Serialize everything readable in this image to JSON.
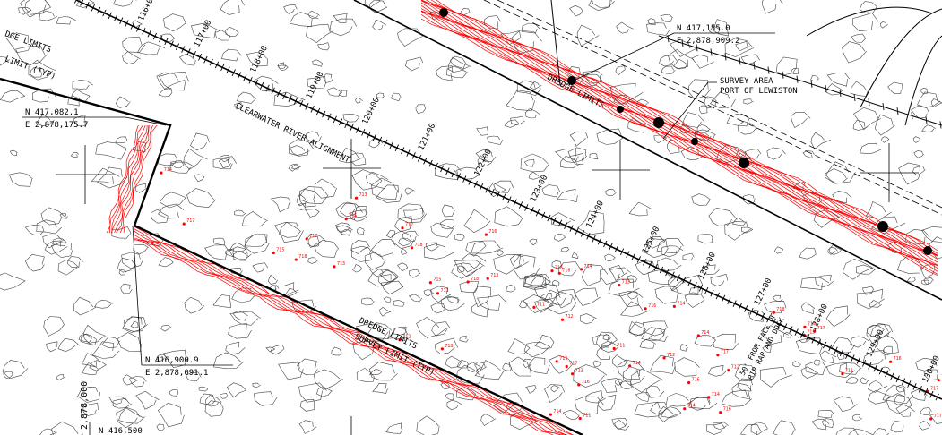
{
  "colors": {
    "background": "#ffffff",
    "linework": "#000000",
    "contours": "#444444",
    "survey": "#ff0000"
  },
  "labels": {
    "dredge_limits_ul": "DGE LIMITS",
    "limit_typ": "LIMIT (TYP)",
    "dredge_limits_top": "DREDGE LIMITS",
    "dredge_limits_bottom": "DREDGE LIMITS",
    "survey_limit_typ": "SURVEY LIMIT (TYP)",
    "survey_area_line1": "SURVEY AREA",
    "survey_area_line2": "PORT OF LEWISTON",
    "alignment": "CLEARWATER RIVER ALIGNMENT",
    "offset_note": "50' FROM FACE OF",
    "offset_note2": "RIP RAP AND DOCK",
    "grid_easting": "2,878,000",
    "grid_northing_partial": "N 416,500"
  },
  "coords": [
    {
      "n": "N 417,082.1",
      "e": "E 2,878,175.7"
    },
    {
      "n": "N 417,155.0",
      "e": "E 2,878,909.2"
    },
    {
      "n": "N 416,900.9",
      "e": "E 2,878,091.1"
    }
  ],
  "stations": [
    "116+00",
    "117+00",
    "118+00",
    "119+00",
    "120+00",
    "121+00",
    "122+00",
    "123+00",
    "124+00",
    "125+00",
    "126+00",
    "127+00",
    "128+00",
    "129+00",
    "130+00",
    "131+00"
  ],
  "depth_labels": [
    "718",
    "717",
    "716",
    "715",
    "714",
    "713",
    "712",
    "711"
  ]
}
